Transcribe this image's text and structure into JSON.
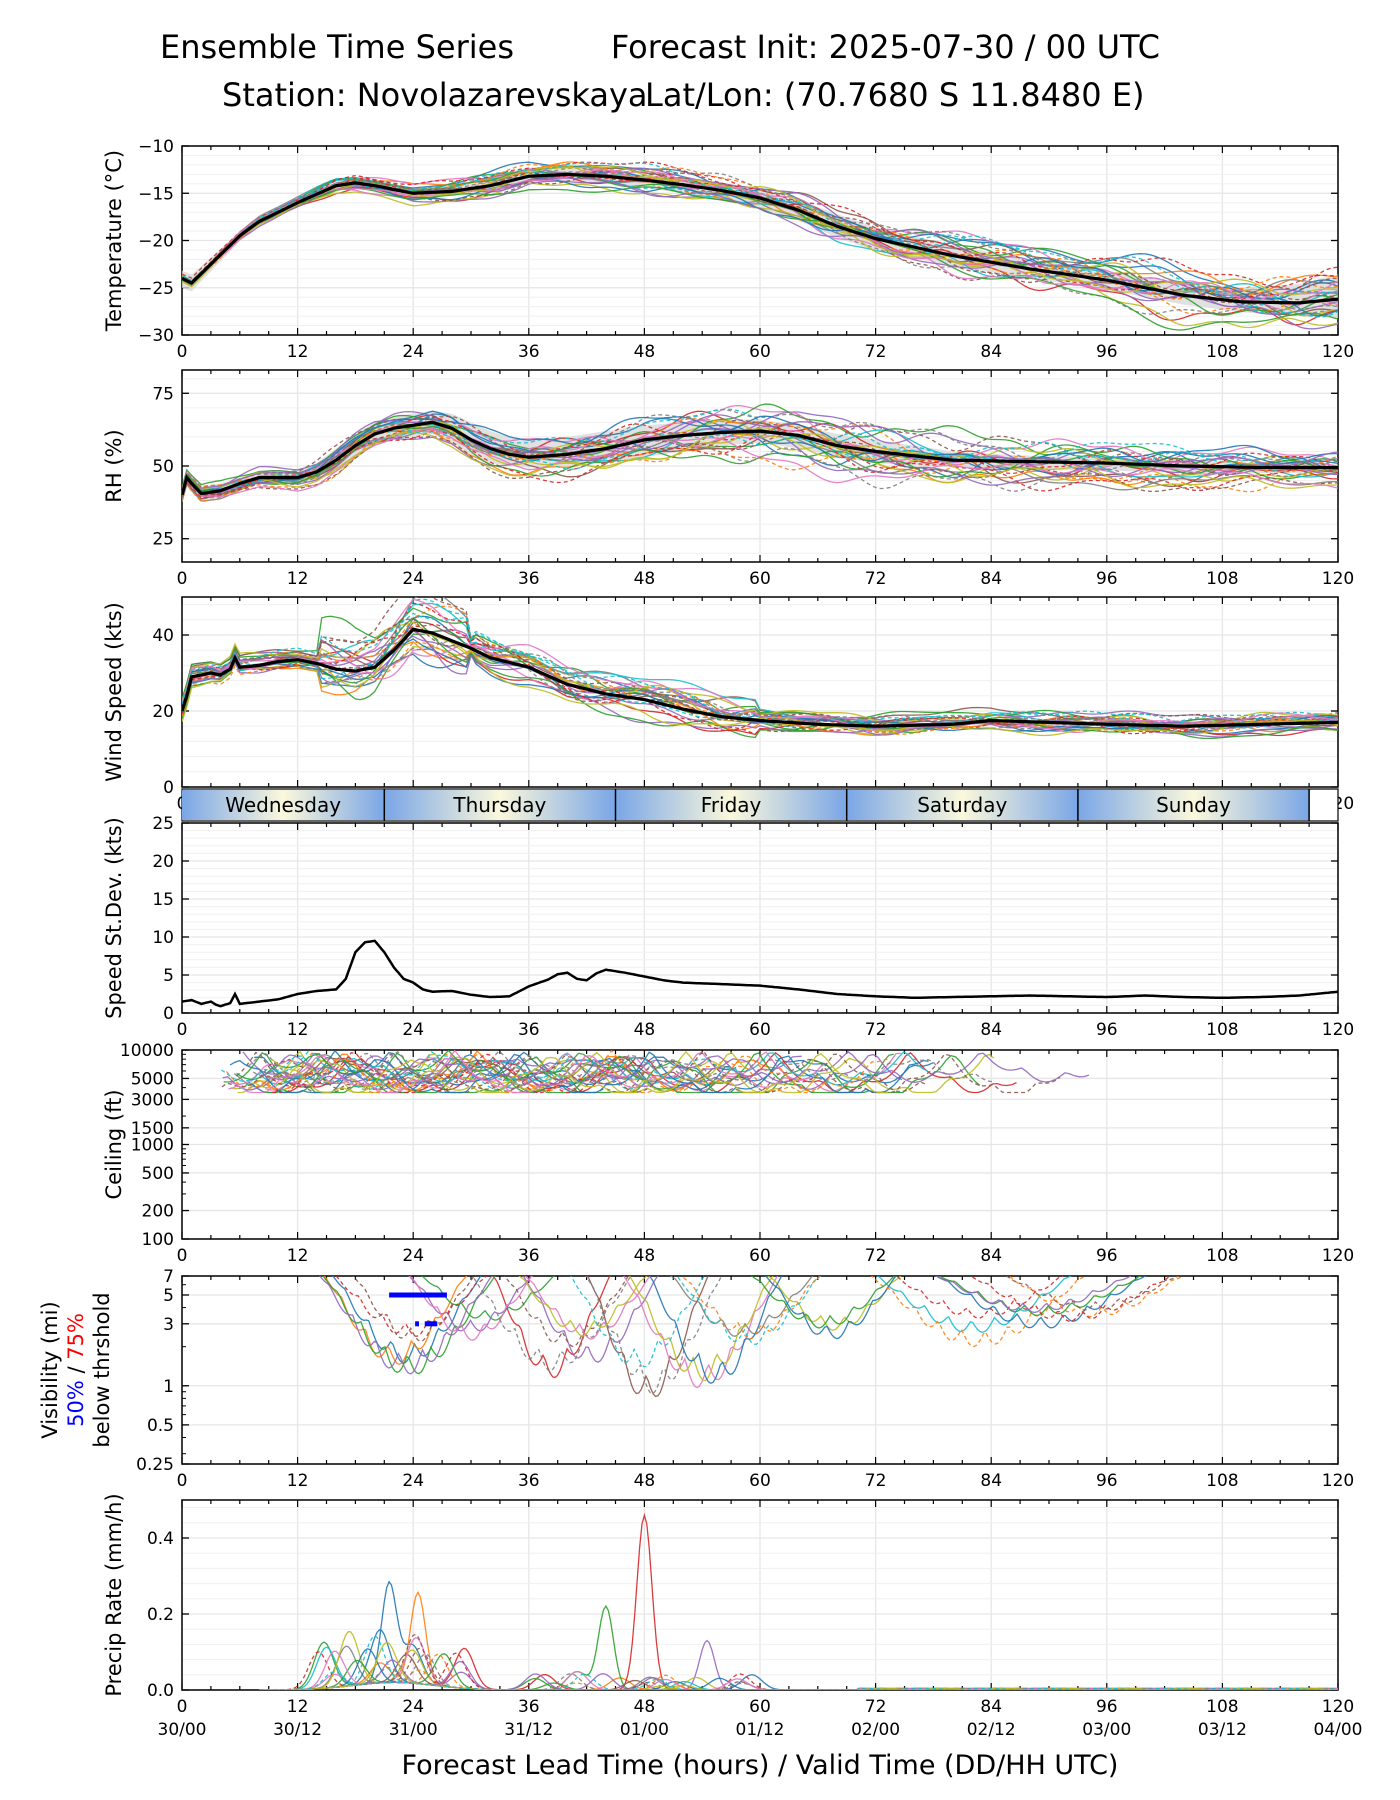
{
  "header": {
    "title_left": "Ensemble Time Series",
    "title_right": "Forecast Init: 2025-07-30 / 00 UTC",
    "station": "Station: Novolazarevskaya",
    "latlon": "Lat/Lon: (70.7680 S 11.8480 E)"
  },
  "colors": {
    "mean": "#000000",
    "spread_fill": "#d9d9d9",
    "grid": "#e6e6e6",
    "member_palette": [
      "#1f77b4",
      "#ff7f0e",
      "#2ca02c",
      "#d62728",
      "#9467bd",
      "#8c564b",
      "#e377c2",
      "#7f7f7f",
      "#bcbd22",
      "#17becf"
    ],
    "day_band_edge": "#7aa6e6",
    "day_band_center": "#fbf8dc",
    "vis_50": "#0000ff",
    "vis_75": "#ff0000"
  },
  "days": [
    "Wednesday",
    "Thursday",
    "Friday",
    "Saturday",
    "Sunday"
  ],
  "x_axis": {
    "ticks": [
      0,
      12,
      24,
      36,
      48,
      60,
      72,
      84,
      96,
      108,
      120
    ],
    "valid_time_labels": [
      "30/00",
      "30/12",
      "31/00",
      "31/12",
      "01/00",
      "01/12",
      "02/00",
      "02/12",
      "03/00",
      "03/12",
      "04/00"
    ],
    "xlabel": "Forecast Lead Time (hours) / Valid Time (DD/HH UTC)"
  },
  "chart_data": [
    {
      "id": "temperature",
      "type": "line",
      "ylabel": "Temperature (°C)",
      "ylim": [
        -30,
        -10
      ],
      "yticks": [
        -30,
        -25,
        -20,
        -15,
        -10
      ],
      "ytick_labels": [
        "−30",
        "−25",
        "−20",
        "−15",
        "−10"
      ],
      "grid": true,
      "x": [
        0,
        1,
        2,
        4,
        6,
        8,
        12,
        16,
        18,
        20,
        24,
        28,
        32,
        36,
        40,
        44,
        48,
        52,
        56,
        60,
        64,
        68,
        72,
        80,
        88,
        96,
        104,
        110,
        116,
        120
      ],
      "mean": [
        -24,
        -24.5,
        -23.5,
        -21.5,
        -19.5,
        -18,
        -16,
        -14.2,
        -13.9,
        -14.2,
        -15,
        -14.8,
        -14.2,
        -13.2,
        -13,
        -13.2,
        -13.6,
        -14.1,
        -14.7,
        -15.5,
        -16.8,
        -18.5,
        -19.8,
        -21.6,
        -23,
        -24.2,
        -25.8,
        -26.5,
        -26.6,
        -26.2
      ],
      "spread_upper": [
        -23.2,
        -23.6,
        -22.7,
        -20.9,
        -19,
        -17.5,
        -15.5,
        -13.6,
        -13.3,
        -13.5,
        -14.5,
        -14.2,
        -13.5,
        -12.6,
        -12.4,
        -12.6,
        -13,
        -13.4,
        -13.9,
        -14.5,
        -15.7,
        -17.2,
        -18.6,
        -20.5,
        -22,
        -23.2,
        -24.6,
        -25,
        -24.6,
        -23.6
      ],
      "spread_lower": [
        -25,
        -25.4,
        -24.3,
        -22.2,
        -20.1,
        -18.5,
        -16.5,
        -14.8,
        -14.5,
        -14.8,
        -15.4,
        -15.3,
        -14.9,
        -13.9,
        -13.7,
        -14,
        -14.4,
        -15,
        -15.6,
        -16.6,
        -17.9,
        -19.7,
        -21.1,
        -22.7,
        -24,
        -25.2,
        -26.8,
        -27.6,
        -28,
        -28.2
      ]
    },
    {
      "id": "rh",
      "type": "line",
      "ylabel": "RH (%)",
      "ylim": [
        17,
        83
      ],
      "yticks": [
        25,
        50,
        75
      ],
      "ytick_labels": [
        "25",
        "50",
        "75"
      ],
      "grid": true,
      "x": [
        0,
        0.5,
        1,
        2,
        4,
        6,
        8,
        12,
        14,
        16,
        18,
        20,
        22,
        24,
        26,
        28,
        30,
        32,
        34,
        36,
        40,
        44,
        48,
        52,
        56,
        60,
        64,
        68,
        72,
        80,
        88,
        96,
        104,
        112,
        120
      ],
      "mean": [
        40,
        46,
        44,
        40.5,
        41.5,
        44,
        46,
        46,
        48,
        52,
        57,
        61,
        63,
        64,
        65,
        63,
        59,
        56,
        54,
        53,
        54,
        56,
        59,
        60.5,
        61.5,
        62,
        60.5,
        57,
        55,
        52,
        51.5,
        51,
        50,
        49.5,
        49.5
      ],
      "spread_upper": [
        42,
        49,
        47,
        43,
        44,
        46,
        48,
        48.5,
        51,
        56,
        61,
        65,
        67,
        68,
        69,
        68,
        65,
        62,
        60,
        59,
        60,
        62,
        64,
        65,
        66,
        66,
        64,
        61,
        59,
        55,
        53.5,
        53,
        52,
        51,
        50.5
      ],
      "spread_lower": [
        38,
        43,
        41,
        38,
        39,
        42,
        44,
        44,
        45,
        48,
        53,
        57,
        59,
        60,
        61,
        58,
        54,
        51,
        50,
        49.5,
        50,
        51,
        53,
        55,
        57,
        58,
        56,
        53,
        51,
        49.5,
        48.5,
        48.5,
        47.5,
        47.5,
        47.5
      ]
    },
    {
      "id": "wind",
      "type": "line",
      "ylabel": "Wind Speed (kts)",
      "ylim": [
        0,
        50
      ],
      "yticks": [
        0,
        20,
        40
      ],
      "ytick_labels": [
        "0",
        "20",
        "40"
      ],
      "grid": true,
      "x": [
        0,
        0.5,
        1,
        2,
        3,
        4,
        5,
        5.5,
        6,
        8,
        10,
        12,
        14,
        16,
        18,
        20,
        22,
        24,
        26,
        28,
        30,
        32,
        36,
        40,
        44,
        48,
        52,
        56,
        60,
        66,
        72,
        80,
        84,
        90,
        96,
        104,
        112,
        120
      ],
      "mean": [
        20,
        24,
        29,
        29.5,
        30,
        29.5,
        31,
        34,
        31.5,
        32,
        33,
        33.5,
        32.5,
        31,
        30.5,
        31.5,
        36,
        41.5,
        40.5,
        38.5,
        36.5,
        34,
        31.5,
        27,
        24.5,
        23,
        20.5,
        18.5,
        17.5,
        16.5,
        16,
        16.5,
        17.5,
        17,
        16.5,
        16,
        16.5,
        17
      ]
    },
    {
      "id": "speed_stdev",
      "type": "line",
      "ylabel": "Speed St.Dev. (kts)",
      "ylim": [
        0,
        25
      ],
      "yticks": [
        0,
        5,
        10,
        15,
        20,
        25
      ],
      "ytick_labels": [
        "0",
        "5",
        "10",
        "15",
        "20",
        "25"
      ],
      "grid": true,
      "x": [
        0,
        1,
        2,
        3,
        3.5,
        4,
        5,
        5.5,
        6,
        8,
        10,
        12,
        14,
        16,
        17,
        18,
        19,
        20,
        21,
        22,
        23,
        24,
        25,
        26,
        28,
        30,
        32,
        34,
        36,
        38,
        39,
        40,
        41,
        42,
        43,
        44,
        46,
        48,
        50,
        52,
        56,
        60,
        64,
        68,
        72,
        76,
        80,
        84,
        88,
        92,
        96,
        100,
        104,
        108,
        112,
        116,
        120
      ],
      "values": [
        1.5,
        1.7,
        1.2,
        1.5,
        1.1,
        0.9,
        1.3,
        2.5,
        1.2,
        1.5,
        1.8,
        2.5,
        2.9,
        3.1,
        4.5,
        8,
        9.3,
        9.5,
        8,
        6,
        4.5,
        4,
        3.1,
        2.8,
        2.9,
        2.4,
        2.1,
        2.2,
        3.5,
        4.4,
        5.1,
        5.3,
        4.5,
        4.3,
        5.2,
        5.7,
        5.3,
        4.8,
        4.3,
        4,
        3.8,
        3.6,
        3.1,
        2.5,
        2.2,
        2,
        2.1,
        2.2,
        2.3,
        2.2,
        2.1,
        2.3,
        2.1,
        2,
        2.1,
        2.3,
        2.8
      ]
    },
    {
      "id": "ceiling",
      "type": "line",
      "ylabel": "Ceiling (ft)",
      "scale": "log",
      "ylim": [
        100,
        10000
      ],
      "yticks": [
        100,
        200,
        500,
        1000,
        1500,
        3000,
        5000,
        10000
      ],
      "ytick_labels": [
        "100",
        "200",
        "500",
        "1000",
        "1500",
        "3000",
        "5000",
        "10000"
      ],
      "grid": true,
      "member_x_range": [
        4,
        101
      ],
      "member_y_range": [
        3500,
        10000
      ]
    },
    {
      "id": "visibility",
      "type": "line",
      "ylabel": "Visibility (mi)",
      "ylabel_50": "50%",
      "ylabel_sep": " / ",
      "ylabel_75": "75%",
      "ylabel_threshold": "below thrshold",
      "scale": "log",
      "ylim": [
        0.25,
        7
      ],
      "yticks": [
        0.25,
        0.5,
        1,
        3,
        5,
        7
      ],
      "ytick_labels": [
        "0.25",
        "0.5",
        "1",
        "3",
        "5",
        "7"
      ],
      "grid": true,
      "threshold_50_bars": [
        {
          "x0": 21.5,
          "x1": 27.5,
          "y": 5
        }
      ],
      "threshold_75_bars": [
        {
          "x0": 24.2,
          "x1": 24.6,
          "y": 3
        },
        {
          "x0": 25.2,
          "x1": 26.5,
          "y": 3
        }
      ],
      "member_minima": [
        1.0,
        1.1,
        1.2,
        0.8,
        0.75,
        1.5,
        2.0,
        2.5
      ]
    },
    {
      "id": "precip",
      "type": "line",
      "ylabel": "Precip Rate (mm/h)",
      "ylim": [
        0,
        0.5
      ],
      "yticks": [
        0.0,
        0.2,
        0.4
      ],
      "ytick_labels": [
        "0.0",
        "0.2",
        "0.4"
      ],
      "grid": true,
      "peaks": [
        {
          "x": 21.5,
          "value": 0.26
        },
        {
          "x": 24.5,
          "value": 0.24
        },
        {
          "x": 44,
          "value": 0.22
        },
        {
          "x": 48,
          "value": 0.46
        },
        {
          "x": 54.5,
          "value": 0.13
        }
      ]
    }
  ]
}
